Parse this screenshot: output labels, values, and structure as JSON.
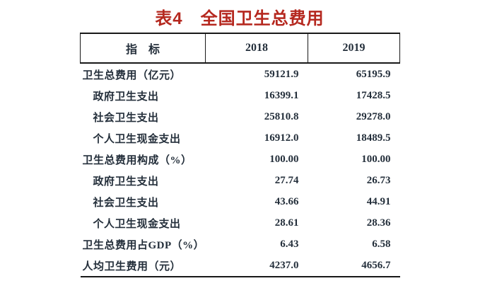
{
  "title": "表4　全国卫生总费用",
  "colors": {
    "title_red": "#b5281f",
    "body_text": "#242f3b",
    "rule": "#181818",
    "background": "#ffffff"
  },
  "table": {
    "columns": {
      "indicator": "指　标",
      "y2018": "2018",
      "y2019": "2019"
    },
    "rows": [
      {
        "label": "卫生总费用（亿元）",
        "indent": false,
        "v2018": "59121.9",
        "v2019": "65195.9"
      },
      {
        "label": "政府卫生支出",
        "indent": true,
        "v2018": "16399.1",
        "v2019": "17428.5"
      },
      {
        "label": "社会卫生支出",
        "indent": true,
        "v2018": "25810.8",
        "v2019": "29278.0"
      },
      {
        "label": "个人卫生现金支出",
        "indent": true,
        "v2018": "16912.0",
        "v2019": "18489.5"
      },
      {
        "label": "卫生总费用构成（%）",
        "indent": false,
        "v2018": "100.00",
        "v2019": "100.00"
      },
      {
        "label": "政府卫生支出",
        "indent": true,
        "v2018": "27.74",
        "v2019": "26.73"
      },
      {
        "label": "社会卫生支出",
        "indent": true,
        "v2018": "43.66",
        "v2019": "44.91"
      },
      {
        "label": "个人卫生现金支出",
        "indent": true,
        "v2018": "28.61",
        "v2019": "28.36"
      },
      {
        "label": "卫生总费用占GDP（%）",
        "indent": false,
        "v2018": "6.43",
        "v2019": "6.58"
      },
      {
        "label": "人均卫生费用（元）",
        "indent": false,
        "v2018": "4237.0",
        "v2019": "4656.7"
      }
    ]
  }
}
